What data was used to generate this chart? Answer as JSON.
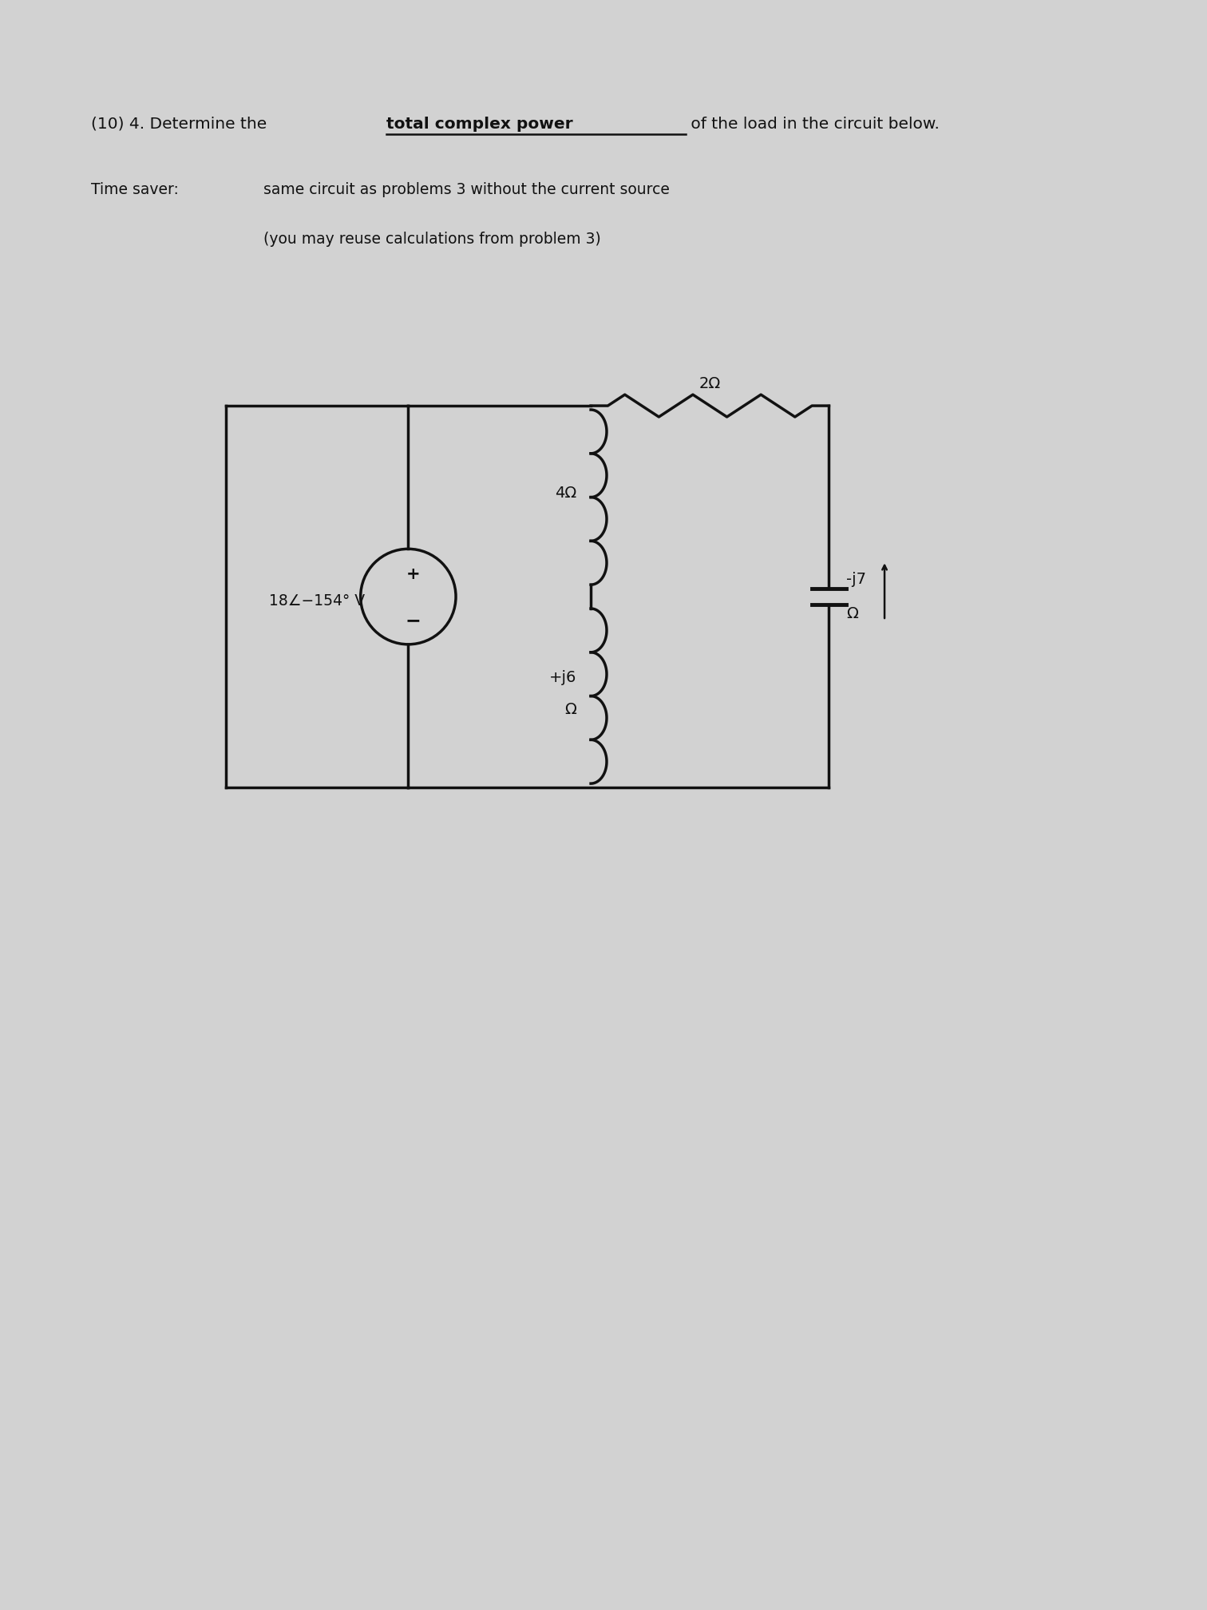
{
  "bg_color": "#d2d2d2",
  "text_color": "#111111",
  "title_pre": "(10) 4. Determine the ",
  "title_bold": "total complex power",
  "title_post": " of the load in the circuit below.",
  "ts_label": "Time saver:",
  "ts_line1": "same circuit as problems 3 without the current source",
  "ts_line2": "(you may reuse calculations from problem 3)",
  "resistor_4": "4Ω",
  "resistor_2": "2Ω",
  "inductor_j6_a": "+j6",
  "inductor_j6_b": "Ω",
  "cap_j7_a": "-j7",
  "cap_j7_b": "Ω",
  "vsource": "18∠−154° V",
  "fig_width": 15.12,
  "fig_height": 20.16,
  "dpi": 100
}
